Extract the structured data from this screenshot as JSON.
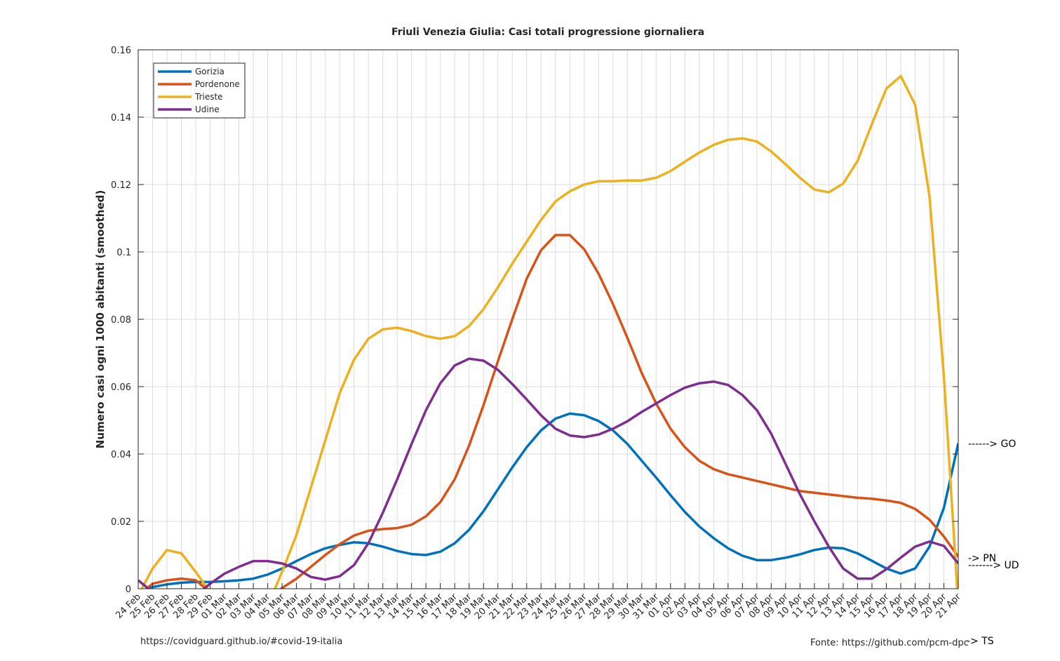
{
  "chart_data": {
    "type": "line",
    "title": "Friuli Venezia Giulia: Casi totali progressione giornaliera",
    "y_label": "Numero casi ogni 1000 abitanti (smoothed)",
    "categories": [
      "24 Feb",
      "25 Feb",
      "26 Feb",
      "27 Feb",
      "28 Feb",
      "29 Feb",
      "01 Mar",
      "02 Mar",
      "03 Mar",
      "04 Mar",
      "05 Mar",
      "06 Mar",
      "07 Mar",
      "08 Mar",
      "09 Mar",
      "10 Mar",
      "11 Mar",
      "12 Mar",
      "13 Mar",
      "14 Mar",
      "15 Mar",
      "16 Mar",
      "17 Mar",
      "18 Mar",
      "19 Mar",
      "20 Mar",
      "21 Mar",
      "22 Mar",
      "23 Mar",
      "24 Mar",
      "25 Mar",
      "26 Mar",
      "27 Mar",
      "28 Mar",
      "29 Mar",
      "30 Mar",
      "31 Mar",
      "01 Apr",
      "02 Apr",
      "03 Apr",
      "04 Apr",
      "05 Apr",
      "06 Apr",
      "07 Apr",
      "08 Apr",
      "09 Apr",
      "10 Apr",
      "11 Apr",
      "12 Apr",
      "13 Apr",
      "14 Apr",
      "15 Apr",
      "16 Apr",
      "17 Apr",
      "18 Apr",
      "19 Apr",
      "20 Apr",
      "21 Apr"
    ],
    "series": [
      {
        "name": "Gorizia",
        "color": "#0072bd",
        "values": [
          -0.001,
          0.0005,
          0.0013,
          0.0018,
          0.002,
          0.002,
          0.0022,
          0.0025,
          0.003,
          0.0042,
          0.006,
          0.0082,
          0.0103,
          0.012,
          0.013,
          0.0138,
          0.0135,
          0.0125,
          0.0112,
          0.0103,
          0.01,
          0.011,
          0.0135,
          0.0175,
          0.023,
          0.0295,
          0.036,
          0.042,
          0.047,
          0.0505,
          0.052,
          0.0515,
          0.0498,
          0.047,
          0.043,
          0.038,
          0.033,
          0.0278,
          0.0228,
          0.0185,
          0.015,
          0.012,
          0.0098,
          0.0085,
          0.0085,
          0.0092,
          0.0102,
          0.0115,
          0.0122,
          0.012,
          0.0105,
          0.0083,
          0.006,
          0.0045,
          0.006,
          0.0125,
          0.024,
          0.0432
        ]
      },
      {
        "name": "Pordenone",
        "color": "#d95319",
        "values": [
          -0.002,
          0.0015,
          0.0025,
          0.003,
          0.0025,
          -0.001,
          -0.004,
          -0.006,
          -0.006,
          -0.003,
          0.0002,
          0.003,
          0.0065,
          0.01,
          0.0132,
          0.0158,
          0.0172,
          0.0177,
          0.018,
          0.019,
          0.0215,
          0.0257,
          0.0325,
          0.0425,
          0.0545,
          0.0675,
          0.08,
          0.092,
          0.1005,
          0.105,
          0.105,
          0.1008,
          0.0935,
          0.0845,
          0.0745,
          0.064,
          0.055,
          0.0475,
          0.042,
          0.038,
          0.0355,
          0.034,
          0.033,
          0.032,
          0.031,
          0.03,
          0.029,
          0.0285,
          0.028,
          0.0275,
          0.027,
          0.0267,
          0.0262,
          0.0255,
          0.0237,
          0.0205,
          0.0155,
          0.0095
        ]
      },
      {
        "name": "Trieste",
        "color": "#edb120",
        "values": [
          -0.002,
          0.006,
          0.0115,
          0.0105,
          0.005,
          -0.001,
          -0.006,
          -0.01,
          -0.01,
          -0.005,
          0.005,
          0.016,
          0.03,
          0.044,
          0.058,
          0.068,
          0.0742,
          0.077,
          0.0775,
          0.0765,
          0.075,
          0.0742,
          0.075,
          0.078,
          0.083,
          0.0895,
          0.0965,
          0.103,
          0.1095,
          0.115,
          0.118,
          0.12,
          0.121,
          0.121,
          0.1212,
          0.1212,
          0.122,
          0.124,
          0.1268,
          0.1295,
          0.1318,
          0.1333,
          0.1337,
          0.1328,
          0.1298,
          0.126,
          0.122,
          0.1185,
          0.1177,
          0.1203,
          0.127,
          0.138,
          0.1485,
          0.1522,
          0.1437,
          0.1165,
          0.063,
          -0.005
        ]
      },
      {
        "name": "Udine",
        "color": "#7e2f8e",
        "values": [
          0.0025,
          -0.001,
          -0.004,
          -0.004,
          -0.002,
          0.0015,
          0.0045,
          0.0065,
          0.0082,
          0.0082,
          0.0075,
          0.006,
          0.0035,
          0.0027,
          0.0037,
          0.007,
          0.0135,
          0.0225,
          0.0325,
          0.043,
          0.053,
          0.061,
          0.0663,
          0.0683,
          0.0677,
          0.065,
          0.0608,
          0.0562,
          0.0515,
          0.0475,
          0.0455,
          0.045,
          0.0458,
          0.0475,
          0.0497,
          0.0525,
          0.055,
          0.0575,
          0.0597,
          0.061,
          0.0615,
          0.0605,
          0.0575,
          0.053,
          0.046,
          0.037,
          0.028,
          0.02,
          0.0125,
          0.006,
          0.003,
          0.003,
          0.0058,
          0.0092,
          0.0125,
          0.014,
          0.0127,
          0.0075
        ]
      }
    ],
    "ylim": [
      0,
      0.16
    ],
    "yticks": [
      0,
      0.02,
      0.04,
      0.06,
      0.08,
      0.1,
      0.12,
      0.14,
      0.16
    ],
    "grid": true,
    "legend": "upper-left",
    "end_labels": [
      "------> GO",
      "-> PN",
      "-> TS",
      "-------> UD"
    ],
    "footer_left": "https://covidguard.github.io/#covid-19-italia",
    "footer_right": "Fonte: https://github.com/pcm-dpc"
  }
}
